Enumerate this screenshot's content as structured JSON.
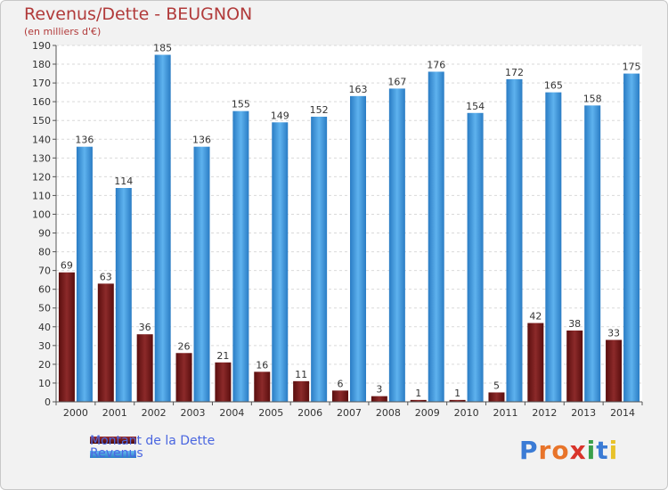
{
  "chart_data": {
    "type": "bar",
    "title": "Revenus/Dette - BEUGNON",
    "subtitle": "(en milliers d'€)",
    "categories": [
      "2000",
      "2001",
      "2002",
      "2003",
      "2004",
      "2005",
      "2006",
      "2007",
      "2008",
      "2009",
      "2010",
      "2011",
      "2012",
      "2013",
      "2014"
    ],
    "series": [
      {
        "name": "Montant de la Dette",
        "color": "#7a1a1a",
        "values": [
          69,
          63,
          36,
          26,
          21,
          16,
          11,
          6,
          3,
          1,
          1,
          5,
          42,
          38,
          33
        ]
      },
      {
        "name": "Revenus",
        "color": "#4a9fe0",
        "values": [
          136,
          114,
          185,
          136,
          155,
          149,
          152,
          163,
          167,
          176,
          154,
          172,
          165,
          158,
          175
        ]
      }
    ],
    "ylim": [
      0,
      190
    ],
    "ytick_step": 10,
    "grid": true,
    "legend": "bottom-left"
  },
  "logo": {
    "text": "Proxiti",
    "letters": [
      "P",
      "r",
      "o",
      "x",
      "i",
      "t",
      "i"
    ],
    "colors": [
      "#3a7bd5",
      "#e8742a",
      "#e8742a",
      "#d9342b",
      "#3aa04a",
      "#3a7bd5",
      "#e8c22a"
    ]
  }
}
